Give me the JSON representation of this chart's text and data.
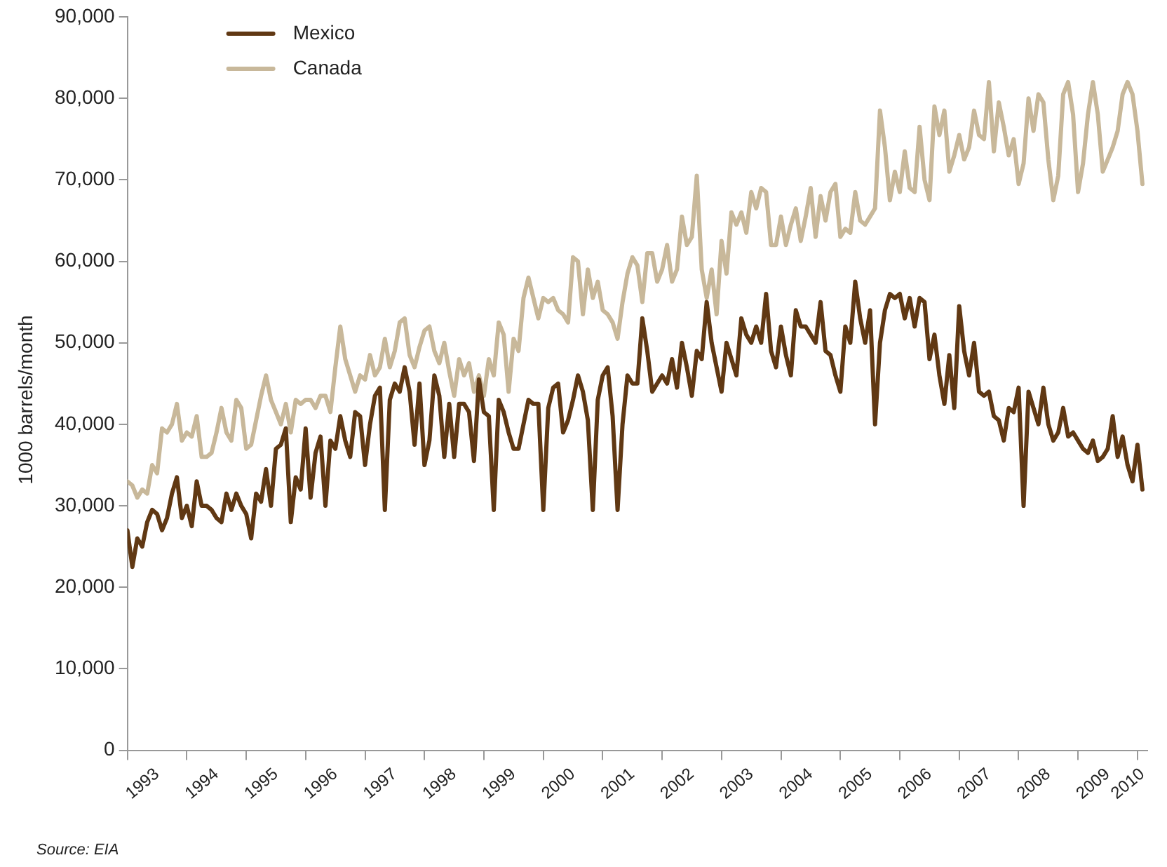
{
  "chart_data": {
    "type": "line",
    "ylabel": "1000 barrels/month",
    "annotations": [
      "Source: EIA"
    ],
    "x": [
      "1993-01",
      "1993-02",
      "1993-03",
      "1993-04",
      "1993-05",
      "1993-06",
      "1993-07",
      "1993-08",
      "1993-09",
      "1993-10",
      "1993-11",
      "1993-12",
      "1994-01",
      "1994-02",
      "1994-03",
      "1994-04",
      "1994-05",
      "1994-06",
      "1994-07",
      "1994-08",
      "1994-09",
      "1994-10",
      "1994-11",
      "1994-12",
      "1995-01",
      "1995-02",
      "1995-03",
      "1995-04",
      "1995-05",
      "1995-06",
      "1995-07",
      "1995-08",
      "1995-09",
      "1995-10",
      "1995-11",
      "1995-12",
      "1996-01",
      "1996-02",
      "1996-03",
      "1996-04",
      "1996-05",
      "1996-06",
      "1996-07",
      "1996-08",
      "1996-09",
      "1996-10",
      "1996-11",
      "1996-12",
      "1997-01",
      "1997-02",
      "1997-03",
      "1997-04",
      "1997-05",
      "1997-06",
      "1997-07",
      "1997-08",
      "1997-09",
      "1997-10",
      "1997-11",
      "1997-12",
      "1998-01",
      "1998-02",
      "1998-03",
      "1998-04",
      "1998-05",
      "1998-06",
      "1998-07",
      "1998-08",
      "1998-09",
      "1998-10",
      "1998-11",
      "1998-12",
      "1999-01",
      "1999-02",
      "1999-03",
      "1999-04",
      "1999-05",
      "1999-06",
      "1999-07",
      "1999-08",
      "1999-09",
      "1999-10",
      "1999-11",
      "1999-12",
      "2000-01",
      "2000-02",
      "2000-03",
      "2000-04",
      "2000-05",
      "2000-06",
      "2000-07",
      "2000-08",
      "2000-09",
      "2000-10",
      "2000-11",
      "2000-12",
      "2001-01",
      "2001-02",
      "2001-03",
      "2001-04",
      "2001-05",
      "2001-06",
      "2001-07",
      "2001-08",
      "2001-09",
      "2001-10",
      "2001-11",
      "2001-12",
      "2002-01",
      "2002-02",
      "2002-03",
      "2002-04",
      "2002-05",
      "2002-06",
      "2002-07",
      "2002-08",
      "2002-09",
      "2002-10",
      "2002-11",
      "2002-12",
      "2003-01",
      "2003-02",
      "2003-03",
      "2003-04",
      "2003-05",
      "2003-06",
      "2003-07",
      "2003-08",
      "2003-09",
      "2003-10",
      "2003-11",
      "2003-12",
      "2004-01",
      "2004-02",
      "2004-03",
      "2004-04",
      "2004-05",
      "2004-06",
      "2004-07",
      "2004-08",
      "2004-09",
      "2004-10",
      "2004-11",
      "2004-12",
      "2005-01",
      "2005-02",
      "2005-03",
      "2005-04",
      "2005-05",
      "2005-06",
      "2005-07",
      "2005-08",
      "2005-09",
      "2005-10",
      "2005-11",
      "2005-12",
      "2006-01",
      "2006-02",
      "2006-03",
      "2006-04",
      "2006-05",
      "2006-06",
      "2006-07",
      "2006-08",
      "2006-09",
      "2006-10",
      "2006-11",
      "2006-12",
      "2007-01",
      "2007-02",
      "2007-03",
      "2007-04",
      "2007-05",
      "2007-06",
      "2007-07",
      "2007-08",
      "2007-09",
      "2007-10",
      "2007-11",
      "2007-12",
      "2008-01",
      "2008-02",
      "2008-03",
      "2008-04",
      "2008-05",
      "2008-06",
      "2008-07",
      "2008-08",
      "2008-09",
      "2008-10",
      "2008-11",
      "2008-12",
      "2009-01",
      "2009-02",
      "2009-03",
      "2009-04",
      "2009-05",
      "2009-06",
      "2009-07",
      "2009-08",
      "2009-09",
      "2009-10",
      "2009-11",
      "2009-12",
      "2010-01",
      "2010-02"
    ],
    "series": [
      {
        "name": "Mexico",
        "color": "#603813",
        "values": [
          27000,
          22500,
          26000,
          25000,
          28000,
          29500,
          29000,
          27000,
          28500,
          31500,
          33500,
          28500,
          30000,
          27500,
          33000,
          30000,
          30000,
          29500,
          28500,
          28000,
          31500,
          29500,
          31500,
          30000,
          29000,
          26000,
          31500,
          30500,
          34500,
          30000,
          37000,
          37500,
          39500,
          28000,
          33500,
          32000,
          39500,
          31000,
          36500,
          38500,
          30000,
          38000,
          37000,
          41000,
          38000,
          36000,
          41500,
          41000,
          35000,
          40000,
          43500,
          44500,
          29500,
          43000,
          45000,
          44000,
          47000,
          44000,
          37500,
          45000,
          35000,
          38000,
          46000,
          43500,
          36000,
          42500,
          36000,
          42500,
          42500,
          41500,
          35500,
          45500,
          41500,
          41000,
          29500,
          43000,
          41500,
          39000,
          37000,
          37000,
          40000,
          43000,
          42500,
          42500,
          29500,
          42000,
          44500,
          45000,
          39000,
          40500,
          43000,
          46000,
          44000,
          40500,
          29500,
          43000,
          46000,
          47000,
          41000,
          29500,
          40000,
          46000,
          45000,
          45000,
          53000,
          49000,
          44000,
          45000,
          46000,
          45000,
          48000,
          44500,
          50000,
          47000,
          43500,
          49000,
          48000,
          55000,
          50000,
          47000,
          44000,
          50000,
          48000,
          46000,
          53000,
          51000,
          50000,
          52000,
          50000,
          56000,
          49000,
          47000,
          52000,
          48500,
          46000,
          54000,
          52000,
          52000,
          51000,
          50000,
          55000,
          49000,
          48500,
          46000,
          44000,
          52000,
          50000,
          57500,
          53000,
          50000,
          54000,
          40000,
          50000,
          54000,
          56000,
          55500,
          56000,
          53000,
          55500,
          52000,
          55500,
          55000,
          48000,
          51000,
          46000,
          42500,
          48500,
          42000,
          54500,
          49000,
          46000,
          50000,
          44000,
          43500,
          44000,
          41000,
          40500,
          38000,
          42000,
          41500,
          44500,
          30000,
          44000,
          42000,
          40000,
          44500,
          40000,
          38000,
          39000,
          42000,
          38500,
          39000,
          38000,
          37000,
          36500,
          38000,
          35500,
          36000,
          37000,
          41000,
          36000,
          38500,
          35000,
          33000,
          37500,
          32000
        ]
      },
      {
        "name": "Canada",
        "color": "#c8b89a",
        "values": [
          33000,
          32500,
          31000,
          32000,
          31500,
          35000,
          34000,
          39500,
          39000,
          40000,
          42500,
          38000,
          39000,
          38500,
          41000,
          36000,
          36000,
          36500,
          39000,
          42000,
          39000,
          38000,
          43000,
          42000,
          37000,
          37500,
          40500,
          43500,
          46000,
          43000,
          41500,
          40000,
          42500,
          39000,
          43000,
          42500,
          43000,
          43000,
          42000,
          43500,
          43500,
          41500,
          47000,
          52000,
          48000,
          46000,
          44000,
          46000,
          45500,
          48500,
          46000,
          47000,
          50500,
          47000,
          49000,
          52500,
          53000,
          48500,
          47000,
          49500,
          51500,
          52000,
          49000,
          47500,
          50000,
          46500,
          43500,
          48000,
          46000,
          47500,
          44000,
          46000,
          43500,
          48000,
          46000,
          52500,
          51000,
          44000,
          50500,
          49000,
          55500,
          58000,
          55500,
          53000,
          55500,
          55000,
          55500,
          54000,
          53500,
          52500,
          60500,
          60000,
          53500,
          59000,
          55500,
          57500,
          54000,
          53500,
          52500,
          50500,
          55000,
          58500,
          60500,
          59500,
          55000,
          61000,
          61000,
          57500,
          59000,
          62000,
          57500,
          59000,
          65500,
          62000,
          63000,
          70500,
          59000,
          55500,
          59000,
          53500,
          62500,
          58500,
          66000,
          64500,
          66000,
          63500,
          68500,
          66500,
          69000,
          68500,
          62000,
          62000,
          65500,
          62000,
          64500,
          66500,
          62500,
          65500,
          69000,
          63000,
          68000,
          65000,
          68500,
          69500,
          63000,
          64000,
          63500,
          68500,
          65000,
          64500,
          65500,
          66500,
          78500,
          74000,
          67500,
          71000,
          68500,
          73500,
          69000,
          68500,
          76500,
          70000,
          67500,
          79000,
          75500,
          78500,
          71000,
          73000,
          75500,
          72500,
          74000,
          78500,
          75500,
          75000,
          82000,
          73500,
          79500,
          76500,
          73000,
          75000,
          69500,
          72000,
          80000,
          76000,
          80500,
          79500,
          72500,
          67500,
          70500,
          80500,
          82000,
          78000,
          68500,
          72000,
          78000,
          82000,
          78000,
          71000,
          72500,
          74000,
          76000,
          80500,
          82000,
          80500,
          76000,
          69500
        ]
      }
    ],
    "xlim": [
      "1993-01",
      "2010-03"
    ],
    "xticks": [
      {
        "value": "1993-01",
        "label": null
      },
      {
        "value": "1993-07",
        "label": "1993"
      },
      {
        "value": "1994-01",
        "label": null
      },
      {
        "value": "1994-07",
        "label": "1994"
      },
      {
        "value": "1995-01",
        "label": null
      },
      {
        "value": "1995-07",
        "label": "1995"
      },
      {
        "value": "1996-01",
        "label": null
      },
      {
        "value": "1996-07",
        "label": "1996"
      },
      {
        "value": "1997-01",
        "label": null
      },
      {
        "value": "1997-07",
        "label": "1997"
      },
      {
        "value": "1998-01",
        "label": null
      },
      {
        "value": "1998-07",
        "label": "1998"
      },
      {
        "value": "1999-01",
        "label": null
      },
      {
        "value": "1999-07",
        "label": "1999"
      },
      {
        "value": "2000-01",
        "label": null
      },
      {
        "value": "2000-07",
        "label": "2000"
      },
      {
        "value": "2001-01",
        "label": null
      },
      {
        "value": "2001-07",
        "label": "2001"
      },
      {
        "value": "2002-01",
        "label": null
      },
      {
        "value": "2002-07",
        "label": "2002"
      },
      {
        "value": "2003-01",
        "label": null
      },
      {
        "value": "2003-07",
        "label": "2003"
      },
      {
        "value": "2004-01",
        "label": null
      },
      {
        "value": "2004-07",
        "label": "2004"
      },
      {
        "value": "2005-01",
        "label": null
      },
      {
        "value": "2005-07",
        "label": "2005"
      },
      {
        "value": "2006-01",
        "label": null
      },
      {
        "value": "2006-07",
        "label": "2006"
      },
      {
        "value": "2007-01",
        "label": null
      },
      {
        "value": "2007-07",
        "label": "2007"
      },
      {
        "value": "2008-01",
        "label": null
      },
      {
        "value": "2008-07",
        "label": "2008"
      },
      {
        "value": "2009-01",
        "label": null
      },
      {
        "value": "2009-07",
        "label": "2009"
      },
      {
        "value": "2010-01",
        "label": null
      },
      {
        "value": "2010-02",
        "label": "2010"
      }
    ],
    "ylim": [
      0,
      90000
    ],
    "yticks": [
      {
        "value": 0,
        "label": "0"
      },
      {
        "value": 10000,
        "label": "10,000"
      },
      {
        "value": 20000,
        "label": "20,000"
      },
      {
        "value": 30000,
        "label": "30,000"
      },
      {
        "value": 40000,
        "label": "40,000"
      },
      {
        "value": 50000,
        "label": "50,000"
      },
      {
        "value": 60000,
        "label": "60,000"
      },
      {
        "value": 70000,
        "label": "70,000"
      },
      {
        "value": 80000,
        "label": "80,000"
      },
      {
        "value": 90000,
        "label": "90,000"
      }
    ],
    "grid": false,
    "legend": "top left",
    "marker": "none",
    "line_style": "solid"
  }
}
